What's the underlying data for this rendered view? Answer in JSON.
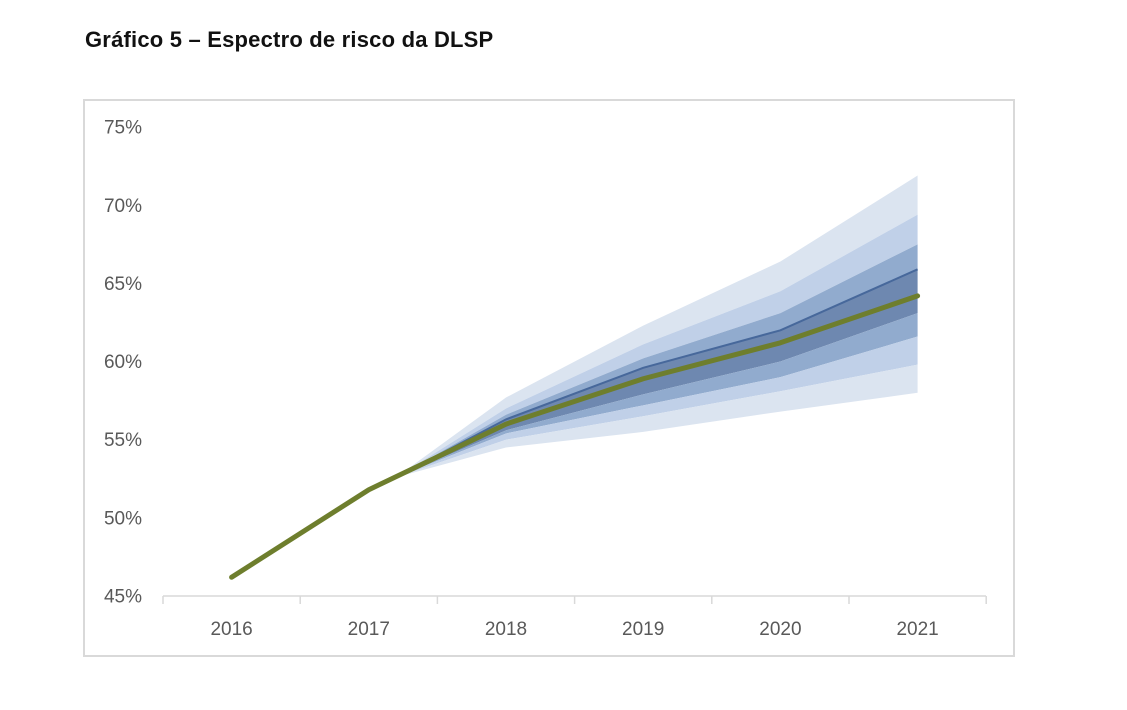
{
  "title": "Gráfico 5 – Espectro de risco da DLSP",
  "colors": {
    "title_text": "#111111",
    "axis_text": "#595959",
    "axis_line": "#d9d9d9",
    "frame_border": "#d9d9d9",
    "median_line": "#6E7E2D",
    "core_top_edge": "#47689B",
    "band_dark": "#6E88B0",
    "band_medium": "#91ABCE",
    "band_light": "#C0D0E8",
    "band_lightest": "#DBE4F0"
  },
  "chart_data": {
    "type": "area",
    "subtype": "fan-chart",
    "title": "Gráfico 5 – Espectro de risco da DLSP",
    "xlabel": "",
    "ylabel": "",
    "x": [
      2016,
      2017,
      2018,
      2019,
      2020,
      2021
    ],
    "x_tick_labels": [
      "2016",
      "2017",
      "2018",
      "2019",
      "2020",
      "2021"
    ],
    "y_tick_labels": [
      "45%",
      "50%",
      "55%",
      "60%",
      "65%",
      "70%",
      "75%"
    ],
    "y_tick_values": [
      45,
      50,
      55,
      60,
      65,
      70,
      75
    ],
    "ylim": [
      45,
      75
    ],
    "grid": false,
    "legend": "none",
    "series": [
      {
        "name": "DLSP",
        "role": "median-path",
        "values": [
          46.2,
          51.8,
          56.0,
          58.9,
          61.2,
          64.2
        ]
      }
    ],
    "fan": {
      "start": {
        "year": 2017.2,
        "value": 52.6
      },
      "years": [
        2018,
        2019,
        2020,
        2021
      ],
      "boundaries": [
        {
          "name": "upper-outer-top",
          "values": [
            57.7,
            62.3,
            66.4,
            71.9
          ]
        },
        {
          "name": "upper-mid-top",
          "values": [
            57.0,
            61.1,
            64.5,
            69.4
          ]
        },
        {
          "name": "upper-inner-top",
          "values": [
            56.6,
            60.2,
            63.1,
            67.5
          ]
        },
        {
          "name": "core-top",
          "values": [
            56.3,
            59.6,
            62.0,
            65.9
          ]
        },
        {
          "name": "core-bottom",
          "values": [
            55.6,
            57.9,
            60.0,
            63.1
          ]
        },
        {
          "name": "lower-inner-bottom",
          "values": [
            55.4,
            57.2,
            59.0,
            61.6
          ]
        },
        {
          "name": "lower-mid-bottom",
          "values": [
            55.0,
            56.5,
            58.1,
            59.8
          ]
        },
        {
          "name": "lower-outer-bottom",
          "values": [
            54.5,
            55.5,
            56.8,
            58.0
          ]
        }
      ],
      "band_colors": [
        "#DBE4F0",
        "#C0D0E8",
        "#91ABCE",
        "#6E88B0",
        "#91ABCE",
        "#C0D0E8",
        "#DBE4F0"
      ]
    }
  }
}
